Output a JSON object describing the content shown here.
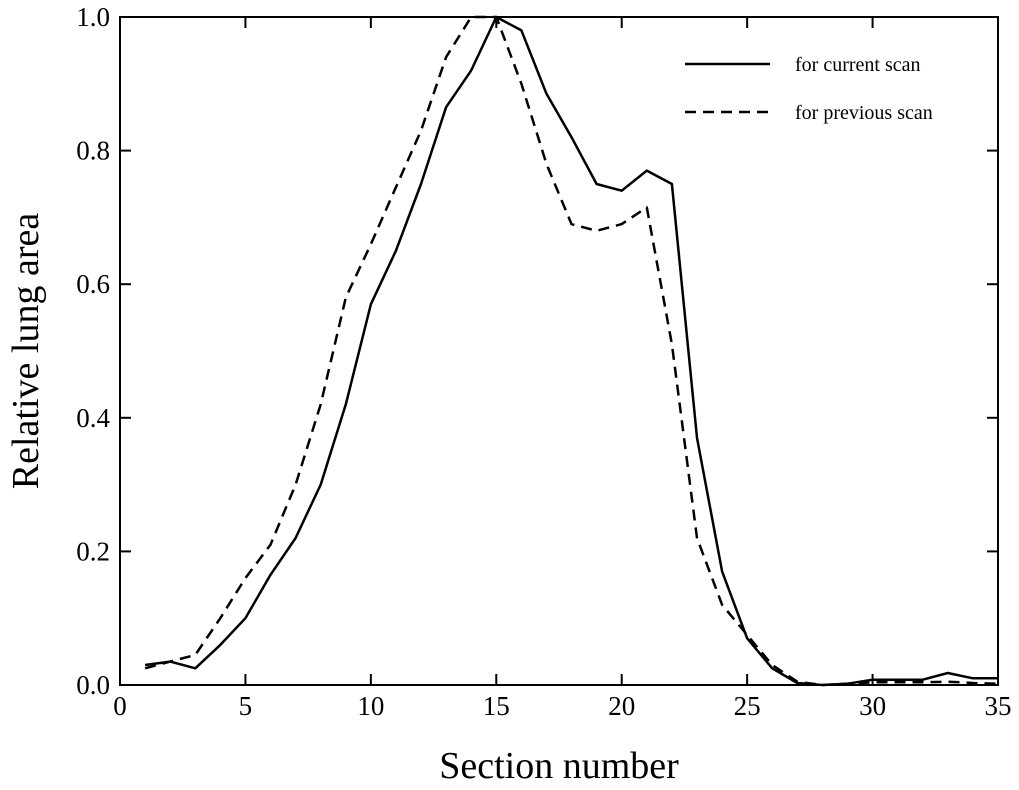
{
  "chart_data": {
    "type": "line",
    "title": "",
    "xlabel": "Section number",
    "ylabel": "Relative lung area",
    "xlim": [
      0,
      35
    ],
    "ylim": [
      0,
      1.0
    ],
    "xticks": [
      "0",
      "5",
      "10",
      "15",
      "20",
      "25",
      "30",
      "35"
    ],
    "yticks": [
      "0.0",
      "0.2",
      "0.4",
      "0.6",
      "0.8",
      "1.0"
    ],
    "grid": false,
    "legend_position": "top-right",
    "series": [
      {
        "name": "for current scan",
        "style": "solid",
        "color": "#000000",
        "x": [
          1,
          2,
          3,
          4,
          5,
          6,
          7,
          8,
          9,
          10,
          11,
          12,
          13,
          14,
          15,
          16,
          17,
          18,
          19,
          20,
          21,
          22,
          23,
          24,
          25,
          26,
          27,
          28,
          29,
          30,
          31,
          32,
          33,
          34,
          35
        ],
        "y": [
          0.03,
          0.035,
          0.025,
          0.06,
          0.1,
          0.165,
          0.22,
          0.3,
          0.42,
          0.57,
          0.65,
          0.75,
          0.865,
          0.92,
          1.0,
          0.98,
          0.885,
          0.82,
          0.75,
          0.74,
          0.77,
          0.75,
          0.37,
          0.17,
          0.07,
          0.025,
          0.003,
          0.0,
          0.002,
          0.008,
          0.008,
          0.008,
          0.018,
          0.01,
          0.01
        ]
      },
      {
        "name": "for previous scan",
        "style": "dashed",
        "color": "#000000",
        "x": [
          1,
          2,
          3,
          4,
          5,
          6,
          7,
          8,
          9,
          10,
          11,
          12,
          13,
          14,
          15,
          16,
          17,
          18,
          19,
          20,
          21,
          22,
          23,
          24,
          25,
          26,
          27,
          28,
          29,
          30,
          31,
          32,
          33,
          34,
          35
        ],
        "y": [
          0.025,
          0.035,
          0.045,
          0.1,
          0.16,
          0.21,
          0.3,
          0.42,
          0.58,
          0.66,
          0.745,
          0.83,
          0.94,
          1.0,
          1.0,
          0.9,
          0.78,
          0.69,
          0.68,
          0.69,
          0.715,
          0.51,
          0.22,
          0.12,
          0.075,
          0.03,
          0.005,
          0.0,
          0.002,
          0.004,
          0.004,
          0.004,
          0.005,
          0.003,
          0.002
        ]
      }
    ]
  }
}
